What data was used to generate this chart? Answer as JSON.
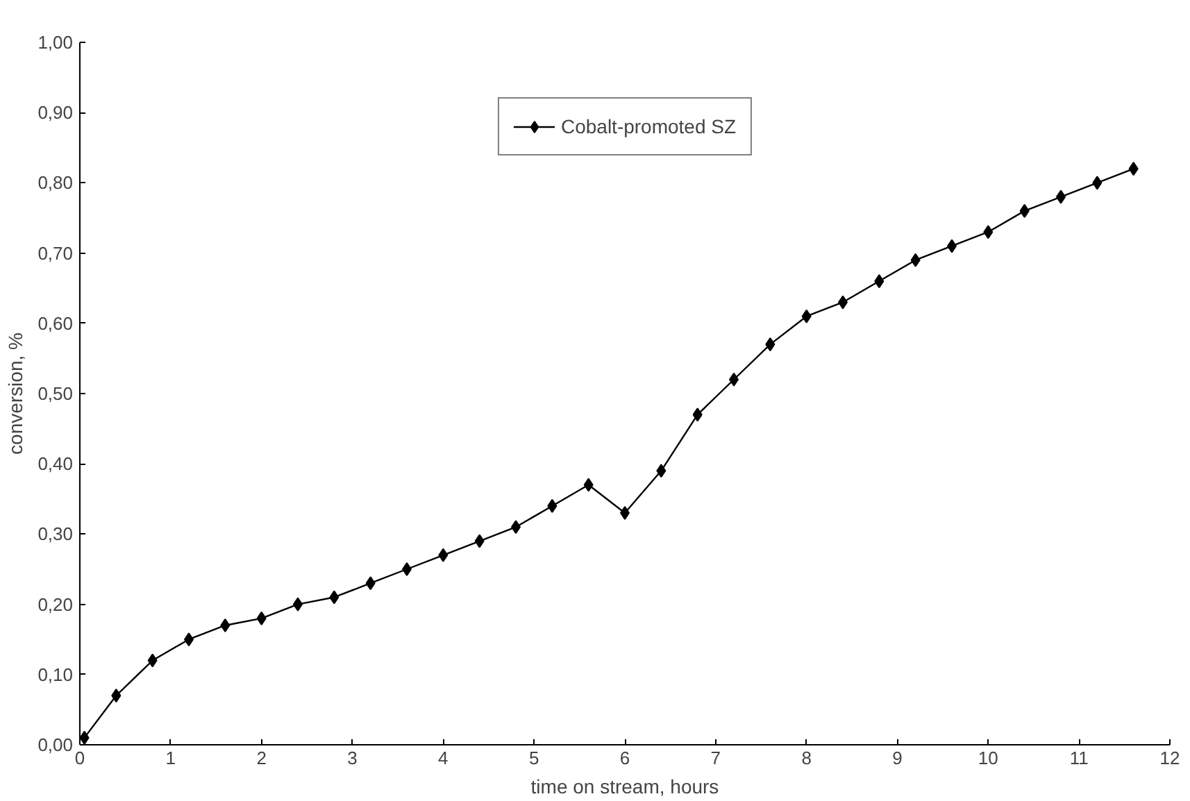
{
  "chart_data": {
    "type": "line",
    "xlabel": "time on stream, hours",
    "ylabel": "conversion, %",
    "xlim": [
      0,
      12
    ],
    "xticks": [
      0,
      1,
      2,
      3,
      4,
      5,
      6,
      7,
      8,
      9,
      10,
      11,
      12
    ],
    "ylim": [
      0,
      1
    ],
    "yticks": [
      {
        "value": 0,
        "label": "0,00"
      },
      {
        "value": 0.1,
        "label": "0,10"
      },
      {
        "value": 0.2,
        "label": "0,20"
      },
      {
        "value": 0.3,
        "label": "0,30"
      },
      {
        "value": 0.4,
        "label": "0,40"
      },
      {
        "value": 0.5,
        "label": "0,50"
      },
      {
        "value": 0.6,
        "label": "0,60"
      },
      {
        "value": 0.7,
        "label": "0,70"
      },
      {
        "value": 0.8,
        "label": "0,80"
      },
      {
        "value": 0.9,
        "label": "0,90"
      },
      {
        "value": 1,
        "label": "1,00"
      }
    ],
    "x": [
      0.05,
      0.4,
      0.8,
      1.2,
      1.6,
      2.0,
      2.4,
      2.8,
      3.2,
      3.6,
      4.0,
      4.4,
      4.8,
      5.2,
      5.6,
      6.0,
      6.4,
      6.8,
      7.2,
      7.6,
      8.0,
      8.4,
      8.8,
      9.2,
      9.6,
      10.0,
      10.4,
      10.8,
      11.2,
      11.6
    ],
    "series": [
      {
        "name": "Cobalt-promoted SZ",
        "color": "#000000",
        "values": [
          0.01,
          0.07,
          0.12,
          0.15,
          0.17,
          0.18,
          0.2,
          0.21,
          0.23,
          0.25,
          0.27,
          0.29,
          0.31,
          0.34,
          0.37,
          0.33,
          0.39,
          0.47,
          0.52,
          0.57,
          0.61,
          0.63,
          0.66,
          0.69,
          0.71,
          0.73,
          0.76,
          0.78,
          0.8,
          0.82
        ]
      }
    ],
    "marker": "diamond",
    "line_style": "solid",
    "grid": false,
    "legend": "top"
  }
}
